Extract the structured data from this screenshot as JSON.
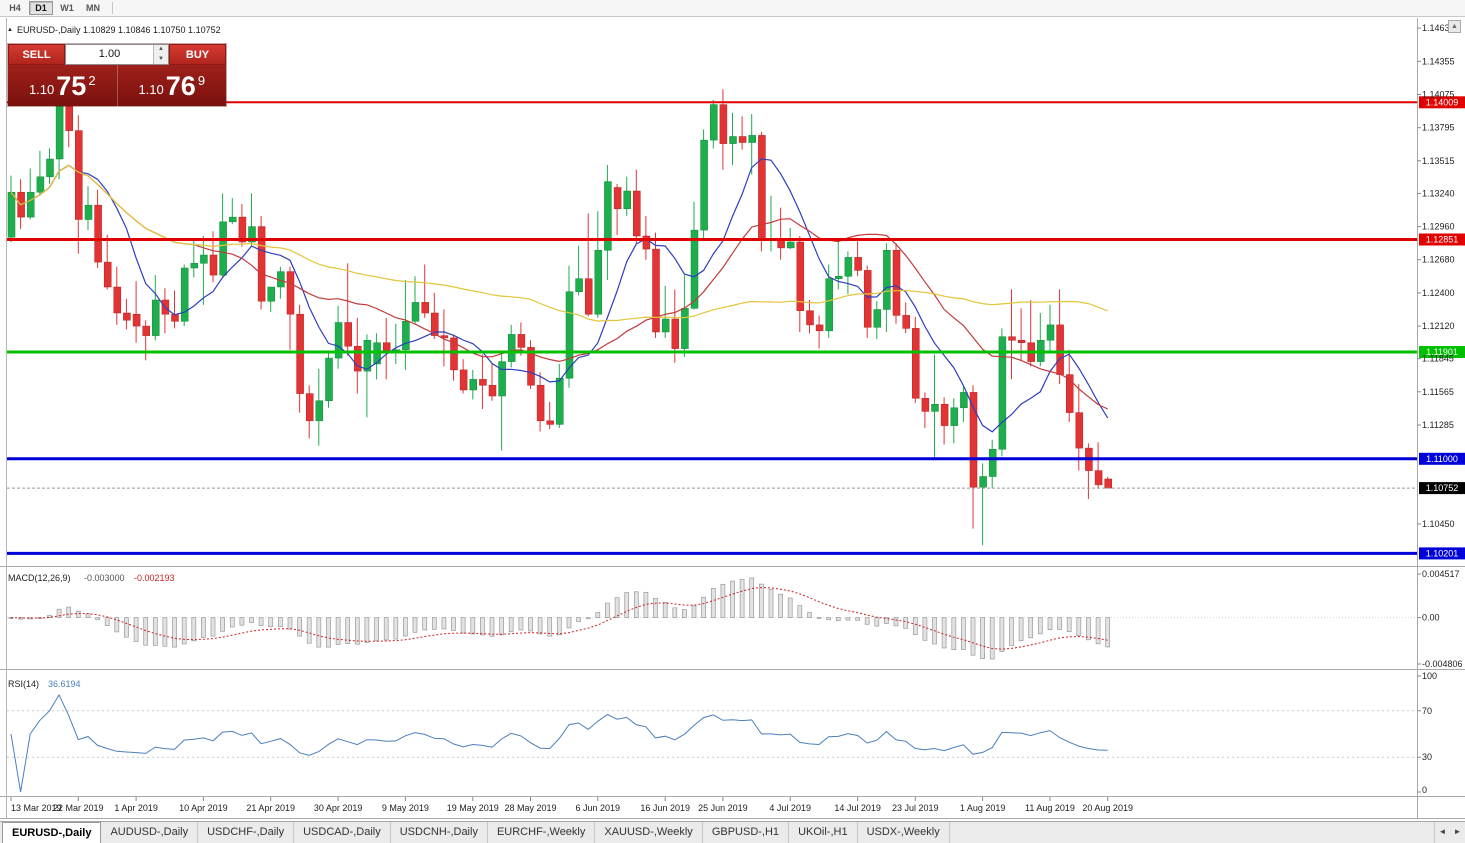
{
  "toolbar": {
    "timeframes": [
      {
        "label": "H4",
        "active": false
      },
      {
        "label": "D1",
        "active": true
      },
      {
        "label": "W1",
        "active": false
      },
      {
        "label": "MN",
        "active": false
      }
    ]
  },
  "chart_info": {
    "full": "EURUSD-,Daily 1.10829 1.10846 1.10750 1.10752"
  },
  "trade_panel": {
    "sell_label": "SELL",
    "buy_label": "BUY",
    "volume": "1.00",
    "sell_price": {
      "prefix": "1.10",
      "big": "75",
      "sup": "2"
    },
    "buy_price": {
      "prefix": "1.10",
      "big": "76",
      "sup": "9"
    }
  },
  "chart_data": {
    "type": "candlestick",
    "symbol": "EURUSD-",
    "timeframe": "Daily",
    "y_range": [
      1.1012,
      1.1467
    ],
    "candle_colors": {
      "up": "#1fae4d",
      "down": "#e23434",
      "up_stroke": "#0d8a38",
      "down_stroke": "#b41f1f"
    },
    "price_axis_labels": [
      "1.14635",
      "1.14355",
      "1.14075",
      "1.13795",
      "1.13515",
      "1.13240",
      "1.12960",
      "1.12680",
      "1.12400",
      "1.12120",
      "1.11845",
      "1.11565",
      "1.11285",
      "1.10450"
    ],
    "date_labels": [
      {
        "label": "13 Mar 2019",
        "index": 0
      },
      {
        "label": "22 Mar 2019",
        "index": 7
      },
      {
        "label": "1 Apr 2019",
        "index": 13
      },
      {
        "label": "10 Apr 2019",
        "index": 20
      },
      {
        "label": "21 Apr 2019",
        "index": 27
      },
      {
        "label": "30 Apr 2019",
        "index": 34
      },
      {
        "label": "9 May 2019",
        "index": 41
      },
      {
        "label": "19 May 2019",
        "index": 48
      },
      {
        "label": "28 May 2019",
        "index": 54
      },
      {
        "label": "6 Jun 2019",
        "index": 61
      },
      {
        "label": "16 Jun 2019",
        "index": 68
      },
      {
        "label": "25 Jun 2019",
        "index": 74
      },
      {
        "label": "4 Jul 2019",
        "index": 81
      },
      {
        "label": "14 Jul 2019",
        "index": 88
      },
      {
        "label": "23 Jul 2019",
        "index": 94
      },
      {
        "label": "1 Aug 2019",
        "index": 101
      },
      {
        "label": "11 Aug 2019",
        "index": 108
      },
      {
        "label": "20 Aug 2019",
        "index": 114
      }
    ],
    "hlines": [
      {
        "price": 1.14009,
        "label": "1.14009",
        "color": "#e00000",
        "width": 2
      },
      {
        "price": 1.12851,
        "label": "1.12851",
        "color": "#e00000",
        "width": 3
      },
      {
        "price": 1.11901,
        "label": "1.11901",
        "color": "#00c000",
        "width": 3
      },
      {
        "price": 1.11,
        "label": "1.11000",
        "color": "#0000d8",
        "width": 3
      },
      {
        "price": 1.10201,
        "label": "1.10201",
        "color": "#0000d8",
        "width": 3
      }
    ],
    "current_price": {
      "price": 1.10752,
      "label": "1.10752",
      "bg": "#000000"
    },
    "moving_averages": [
      {
        "period": 8,
        "method": "sma",
        "color": "#2d3fbf"
      },
      {
        "period": 20,
        "method": "sma",
        "color": "#c23b3b"
      },
      {
        "period": 55,
        "method": "sma",
        "color": "#e3c53a"
      }
    ],
    "macd": {
      "label": "MACD(12,26,9)",
      "value_main": "-0.003000",
      "value_signal": "-0.002193",
      "fast": 12,
      "slow": 26,
      "signal": 9,
      "axis_labels": [
        {
          "label": "0.004517",
          "value": 0.004517
        },
        {
          "label": "0.00",
          "value": 0
        },
        {
          "label": "-0.004806",
          "value": -0.004806
        }
      ],
      "range": [
        -0.004806,
        0.004517
      ],
      "histogram_color": "#9a9a9a",
      "signal_color": "#cc2222"
    },
    "rsi": {
      "label": "RSI(14)",
      "value_text": "36.6194",
      "period": 14,
      "levels": [
        70,
        30
      ],
      "axis_labels": [
        {
          "label": "100",
          "value": 100
        },
        {
          "label": "70",
          "value": 70
        },
        {
          "label": "30",
          "value": 30
        },
        {
          "label": "0",
          "value": 0
        }
      ],
      "range": [
        0,
        100
      ],
      "line_color": "#4a7fbe"
    },
    "candles": [
      [
        1.1287,
        1.1339,
        1.1283,
        1.1325
      ],
      [
        1.1325,
        1.1336,
        1.1294,
        1.1304
      ],
      [
        1.1304,
        1.1345,
        1.1302,
        1.1325
      ],
      [
        1.1325,
        1.136,
        1.1322,
        1.1338
      ],
      [
        1.1338,
        1.1362,
        1.1332,
        1.1353
      ],
      [
        1.1353,
        1.1448,
        1.1336,
        1.1412
      ],
      [
        1.1412,
        1.1438,
        1.1363,
        1.1377
      ],
      [
        1.1377,
        1.139,
        1.1273,
        1.1302
      ],
      [
        1.1302,
        1.133,
        1.1293,
        1.1314
      ],
      [
        1.1314,
        1.1327,
        1.1261,
        1.1266
      ],
      [
        1.1266,
        1.1289,
        1.1243,
        1.1245
      ],
      [
        1.1245,
        1.1262,
        1.1213,
        1.1223
      ],
      [
        1.1223,
        1.1235,
        1.1209,
        1.1217
      ],
      [
        1.1222,
        1.125,
        1.1198,
        1.1212
      ],
      [
        1.1212,
        1.1217,
        1.1183,
        1.1204
      ],
      [
        1.1204,
        1.1255,
        1.12,
        1.1234
      ],
      [
        1.1234,
        1.1244,
        1.1206,
        1.1222
      ],
      [
        1.1222,
        1.1242,
        1.121,
        1.1216
      ],
      [
        1.1216,
        1.1264,
        1.1212,
        1.1261
      ],
      [
        1.1261,
        1.1285,
        1.1253,
        1.1265
      ],
      [
        1.1265,
        1.1288,
        1.123,
        1.1272
      ],
      [
        1.1272,
        1.1292,
        1.1249,
        1.1255
      ],
      [
        1.1255,
        1.1324,
        1.1253,
        1.13
      ],
      [
        1.13,
        1.132,
        1.1298,
        1.1304
      ],
      [
        1.1304,
        1.1315,
        1.1279,
        1.1283
      ],
      [
        1.1283,
        1.1324,
        1.128,
        1.1296
      ],
      [
        1.1296,
        1.1305,
        1.1226,
        1.1233
      ],
      [
        1.1233,
        1.1245,
        1.1224,
        1.1245
      ],
      [
        1.1245,
        1.1262,
        1.1235,
        1.1258
      ],
      [
        1.1258,
        1.1262,
        1.1192,
        1.1222
      ],
      [
        1.1222,
        1.123,
        1.1139,
        1.1155
      ],
      [
        1.1155,
        1.1162,
        1.1117,
        1.1132
      ],
      [
        1.1132,
        1.1176,
        1.1111,
        1.1149
      ],
      [
        1.1149,
        1.119,
        1.1143,
        1.1185
      ],
      [
        1.1185,
        1.1229,
        1.1176,
        1.1215
      ],
      [
        1.1215,
        1.1265,
        1.1187,
        1.1195
      ],
      [
        1.1195,
        1.1219,
        1.1155,
        1.1174
      ],
      [
        1.1174,
        1.1205,
        1.1135,
        1.12
      ],
      [
        1.118,
        1.1206,
        1.1167,
        1.1198
      ],
      [
        1.1198,
        1.1219,
        1.1167,
        1.119
      ],
      [
        1.119,
        1.1214,
        1.118,
        1.1192
      ],
      [
        1.1192,
        1.1251,
        1.1175,
        1.1216
      ],
      [
        1.1216,
        1.1254,
        1.1214,
        1.1232
      ],
      [
        1.1232,
        1.1264,
        1.1219,
        1.1223
      ],
      [
        1.1223,
        1.124,
        1.1201,
        1.1204
      ],
      [
        1.1204,
        1.1226,
        1.1178,
        1.1202
      ],
      [
        1.1202,
        1.1205,
        1.1166,
        1.1175
      ],
      [
        1.1175,
        1.1184,
        1.1155,
        1.1158
      ],
      [
        1.1158,
        1.1175,
        1.115,
        1.1167
      ],
      [
        1.1167,
        1.1188,
        1.1142,
        1.1162
      ],
      [
        1.1162,
        1.118,
        1.1149,
        1.1153
      ],
      [
        1.1153,
        1.1188,
        1.1107,
        1.1182
      ],
      [
        1.1182,
        1.1213,
        1.1177,
        1.1205
      ],
      [
        1.1205,
        1.1215,
        1.1187,
        1.1194
      ],
      [
        1.1194,
        1.12,
        1.1159,
        1.1162
      ],
      [
        1.1162,
        1.1173,
        1.1123,
        1.1132
      ],
      [
        1.1132,
        1.1148,
        1.1125,
        1.1129
      ],
      [
        1.1129,
        1.118,
        1.1126,
        1.1168
      ],
      [
        1.1168,
        1.1263,
        1.116,
        1.1241
      ],
      [
        1.1241,
        1.128,
        1.1238,
        1.1252
      ],
      [
        1.1252,
        1.1307,
        1.122,
        1.1222
      ],
      [
        1.1222,
        1.1309,
        1.1219,
        1.1276
      ],
      [
        1.1276,
        1.1348,
        1.1251,
        1.1334
      ],
      [
        1.1329,
        1.1332,
        1.1289,
        1.1311
      ],
      [
        1.1311,
        1.1338,
        1.1305,
        1.1326
      ],
      [
        1.1326,
        1.1344,
        1.1282,
        1.1288
      ],
      [
        1.1288,
        1.1305,
        1.1268,
        1.1277
      ],
      [
        1.1277,
        1.1291,
        1.1202,
        1.1207
      ],
      [
        1.1207,
        1.1246,
        1.1202,
        1.1218
      ],
      [
        1.1218,
        1.1243,
        1.1181,
        1.1193
      ],
      [
        1.1193,
        1.1255,
        1.1186,
        1.1227
      ],
      [
        1.1227,
        1.1317,
        1.1226,
        1.1293
      ],
      [
        1.1293,
        1.1378,
        1.1285,
        1.1369
      ],
      [
        1.1369,
        1.1403,
        1.1362,
        1.1399
      ],
      [
        1.1399,
        1.1412,
        1.1344,
        1.1366
      ],
      [
        1.1366,
        1.1392,
        1.1348,
        1.1372
      ],
      [
        1.1372,
        1.1389,
        1.1361,
        1.1367
      ],
      [
        1.1367,
        1.1391,
        1.134,
        1.1373
      ],
      [
        1.1373,
        1.1376,
        1.1275,
        1.1285
      ],
      [
        1.1285,
        1.1322,
        1.1275,
        1.1285
      ],
      [
        1.1285,
        1.1312,
        1.1268,
        1.1278
      ],
      [
        1.1278,
        1.1295,
        1.1277,
        1.1283
      ],
      [
        1.1283,
        1.1288,
        1.1207,
        1.1225
      ],
      [
        1.1225,
        1.1234,
        1.1206,
        1.1213
      ],
      [
        1.1213,
        1.1221,
        1.1193,
        1.1208
      ],
      [
        1.1208,
        1.1264,
        1.1202,
        1.1252
      ],
      [
        1.1252,
        1.1286,
        1.1243,
        1.1254
      ],
      [
        1.1254,
        1.1275,
        1.1239,
        1.127
      ],
      [
        1.127,
        1.1284,
        1.1254,
        1.1259
      ],
      [
        1.1259,
        1.1263,
        1.1202,
        1.1211
      ],
      [
        1.1211,
        1.1233,
        1.1201,
        1.1226
      ],
      [
        1.1226,
        1.1282,
        1.1207,
        1.1276
      ],
      [
        1.1276,
        1.1282,
        1.1214,
        1.1221
      ],
      [
        1.1221,
        1.1232,
        1.1206,
        1.121
      ],
      [
        1.121,
        1.122,
        1.1147,
        1.1151
      ],
      [
        1.1151,
        1.1156,
        1.1126,
        1.114
      ],
      [
        1.114,
        1.1188,
        1.1101,
        1.1146
      ],
      [
        1.1146,
        1.1152,
        1.1112,
        1.1128
      ],
      [
        1.1128,
        1.1151,
        1.1113,
        1.1143
      ],
      [
        1.1143,
        1.1162,
        1.1131,
        1.1156
      ],
      [
        1.1156,
        1.1162,
        1.1041,
        1.1076
      ],
      [
        1.1076,
        1.1096,
        1.1027,
        1.1085
      ],
      [
        1.1085,
        1.1116,
        1.1075,
        1.1108
      ],
      [
        1.1108,
        1.121,
        1.1102,
        1.1203
      ],
      [
        1.1203,
        1.1243,
        1.1167,
        1.12
      ],
      [
        1.12,
        1.1227,
        1.1183,
        1.1198
      ],
      [
        1.1198,
        1.1234,
        1.1178,
        1.1182
      ],
      [
        1.1182,
        1.1223,
        1.1178,
        1.12
      ],
      [
        1.12,
        1.123,
        1.119,
        1.1213
      ],
      [
        1.1213,
        1.1243,
        1.1163,
        1.1171
      ],
      [
        1.1171,
        1.1192,
        1.1131,
        1.1139
      ],
      [
        1.1139,
        1.1163,
        1.109,
        1.1109
      ],
      [
        1.1109,
        1.1113,
        1.1066,
        1.109
      ],
      [
        1.109,
        1.1114,
        1.1075,
        1.1078
      ],
      [
        1.10829,
        1.10846,
        1.1075,
        1.10752
      ]
    ]
  },
  "window": {
    "scroll_up": "▲",
    "tab_scroll_left": "◄",
    "tab_scroll_right": "►",
    "panel_toggle": "▲"
  },
  "tabs": [
    {
      "label": "EURUSD-,Daily",
      "active": true
    },
    {
      "label": "AUDUSD-,Daily",
      "active": false
    },
    {
      "label": "USDCHF-,Daily",
      "active": false
    },
    {
      "label": "USDCAD-,Daily",
      "active": false
    },
    {
      "label": "USDCNH-,Daily",
      "active": false
    },
    {
      "label": "EURCHF-,Weekly",
      "active": false
    },
    {
      "label": "XAUUSD-,Weekly",
      "active": false
    },
    {
      "label": "GBPUSD-,H1",
      "active": false
    },
    {
      "label": "UKOil-,H1",
      "active": false
    },
    {
      "label": "USDX-,Weekly",
      "active": false
    }
  ]
}
